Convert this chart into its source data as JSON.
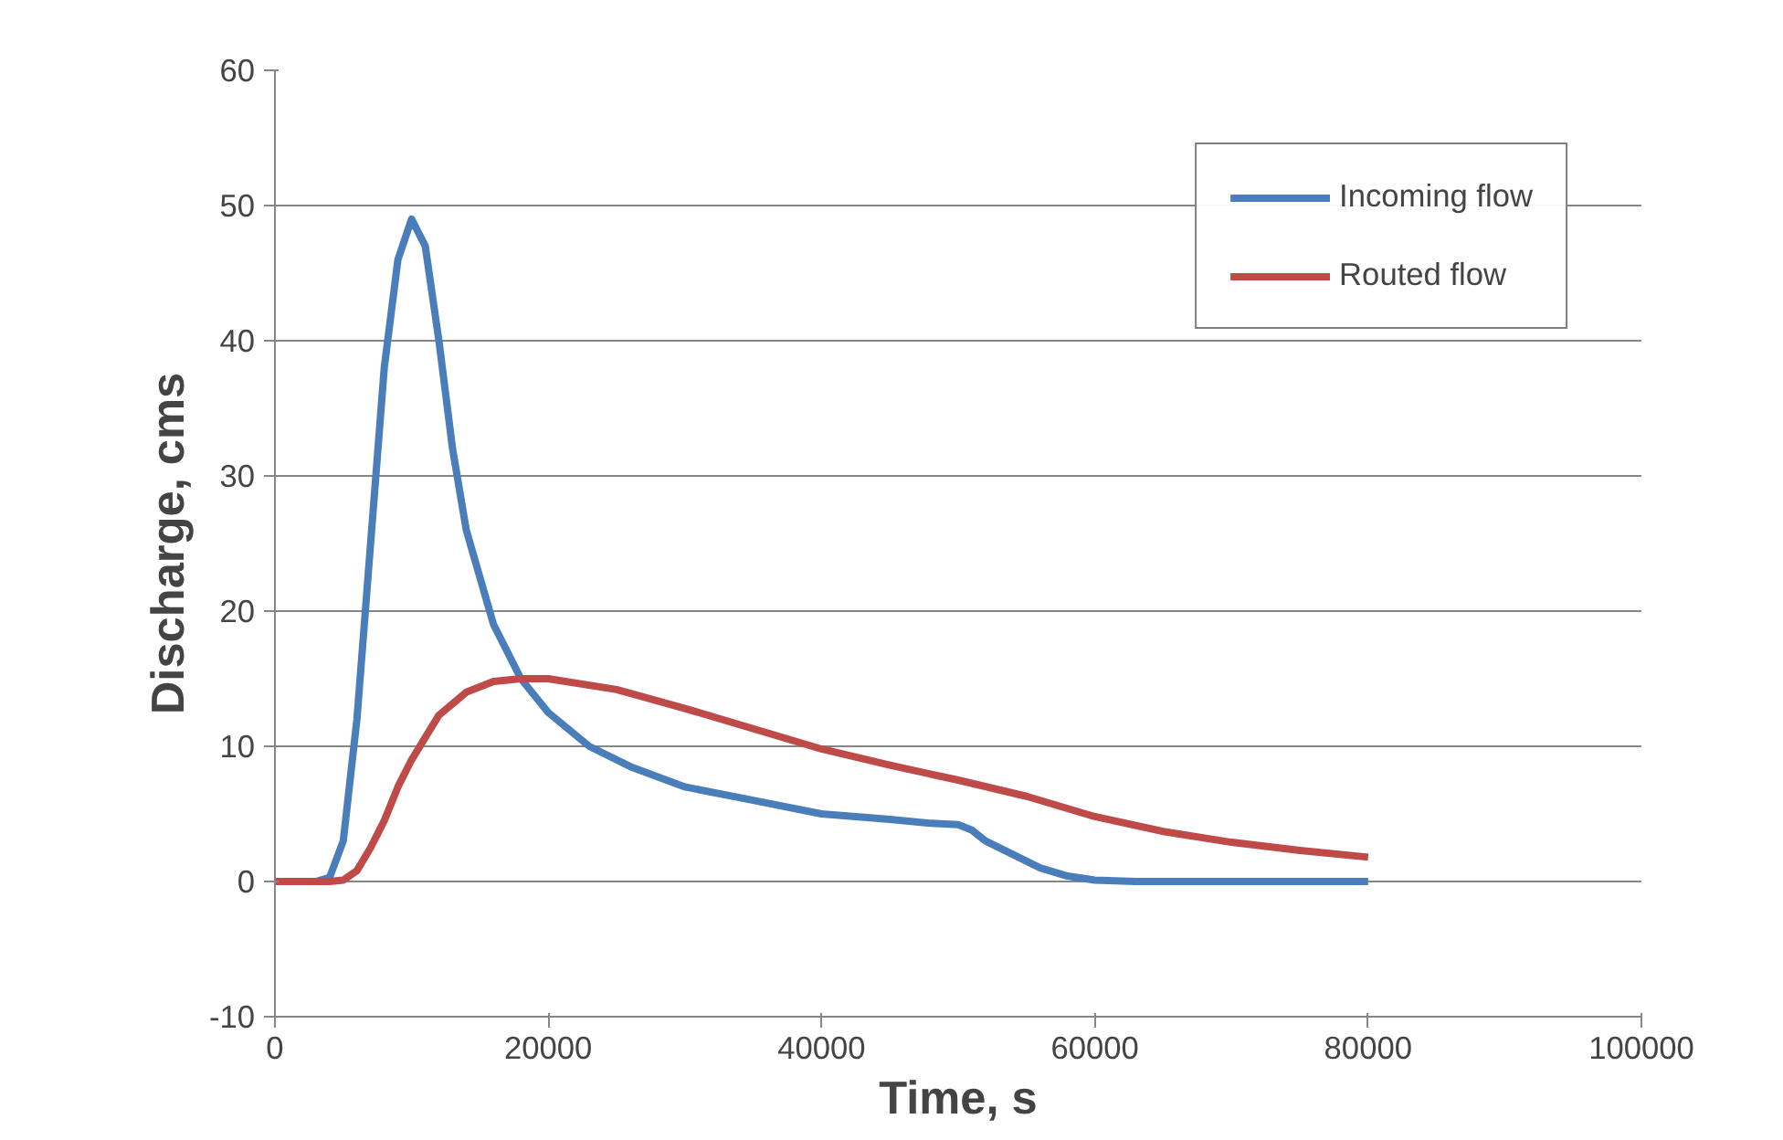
{
  "chart_data": {
    "type": "line",
    "xlabel": "Time, s",
    "ylabel": "Discharge, cms",
    "xlim": [
      0,
      100000
    ],
    "xticks": [
      0,
      20000,
      40000,
      60000,
      80000,
      100000
    ],
    "ylim": [
      -10,
      60
    ],
    "yticks": [
      -10,
      0,
      10,
      20,
      30,
      40,
      50,
      60
    ],
    "grid": "y",
    "legend": "top right",
    "marker": "none",
    "line_style": "solid",
    "series": [
      {
        "name": "Incoming flow",
        "color": "#4a7ebb",
        "x": [
          0,
          3000,
          4000,
          5000,
          6000,
          7000,
          8000,
          9000,
          10000,
          11000,
          12000,
          13000,
          14000,
          16000,
          18000,
          20000,
          23000,
          26000,
          30000,
          35000,
          40000,
          45000,
          48000,
          50000,
          51000,
          52000,
          54000,
          56000,
          58000,
          60000,
          63000,
          66000,
          70000,
          80000
        ],
        "values": [
          0,
          0,
          0.3,
          3,
          12,
          25,
          38,
          46,
          49,
          47,
          40,
          32,
          26,
          19,
          15,
          12.5,
          10,
          8.5,
          7,
          6,
          5,
          4.6,
          4.3,
          4.2,
          3.8,
          3,
          2,
          1,
          0.4,
          0.1,
          0,
          0,
          0,
          0
        ]
      },
      {
        "name": "Routed flow",
        "color": "#be4b48",
        "x": [
          0,
          4000,
          5000,
          6000,
          7000,
          8000,
          9000,
          10000,
          12000,
          14000,
          16000,
          18000,
          20000,
          25000,
          30000,
          35000,
          40000,
          45000,
          50000,
          55000,
          60000,
          65000,
          70000,
          75000,
          80000
        ],
        "values": [
          0,
          0,
          0.1,
          0.8,
          2.5,
          4.5,
          7,
          9,
          12.3,
          14,
          14.8,
          15,
          15,
          14.2,
          12.8,
          11.3,
          9.8,
          8.6,
          7.5,
          6.3,
          4.8,
          3.7,
          2.9,
          2.3,
          1.8
        ]
      }
    ]
  }
}
